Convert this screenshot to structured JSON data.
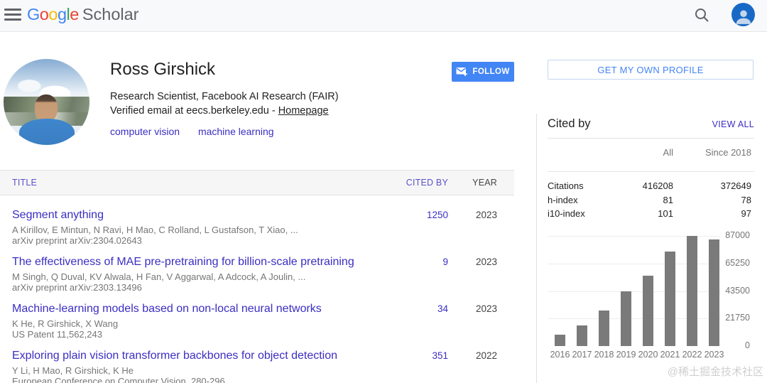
{
  "colors": {
    "brand_blue": "#4285F4",
    "brand_red": "#EA4335",
    "brand_yellow": "#FBBC05",
    "brand_green": "#34A853",
    "link": "#3A2EC2",
    "header_link": "#5A52C8",
    "follow_button": "#4285F4",
    "bar_gray": "#7A7A7A",
    "muted_text": "#757575",
    "avatar_blue": "#1869C6"
  },
  "header": {
    "logo": {
      "letters": [
        {
          "ch": "G",
          "color": "#4285F4"
        },
        {
          "ch": "o",
          "color": "#EA4335"
        },
        {
          "ch": "o",
          "color": "#FBBC05"
        },
        {
          "ch": "g",
          "color": "#4285F4"
        },
        {
          "ch": "l",
          "color": "#34A853"
        },
        {
          "ch": "e",
          "color": "#EA4335"
        }
      ],
      "suffix": "Scholar"
    }
  },
  "profile": {
    "name": "Ross Girshick",
    "affiliation": "Research Scientist, Facebook AI Research (FAIR)",
    "email_prefix": "Verified email at eecs.berkeley.edu - ",
    "homepage_label": "Homepage",
    "interests": [
      "computer vision",
      "machine learning"
    ],
    "follow_label": "FOLLOW",
    "get_profile_label": "GET MY OWN PROFILE"
  },
  "publications": {
    "columns": {
      "title": "TITLE",
      "cited_by": "CITED BY",
      "year": "YEAR"
    },
    "rows": [
      {
        "title": "Segment anything",
        "authors": "A Kirillov, E Mintun, N Ravi, H Mao, C Rolland, L Gustafson, T Xiao, ...",
        "venue": "arXiv preprint arXiv:2304.02643",
        "cited_by": "1250",
        "year": "2023"
      },
      {
        "title": "The effectiveness of MAE pre-pretraining for billion-scale pretraining",
        "authors": "M Singh, Q Duval, KV Alwala, H Fan, V Aggarwal, A Adcock, A Joulin, ...",
        "venue": "arXiv preprint arXiv:2303.13496",
        "cited_by": "9",
        "year": "2023"
      },
      {
        "title": "Machine-learning models based on non-local neural networks",
        "authors": "K He, R Girshick, X Wang",
        "venue": "US Patent 11,562,243",
        "cited_by": "34",
        "year": "2023"
      },
      {
        "title": "Exploring plain vision transformer backbones for object detection",
        "authors": "Y Li, H Mao, R Girshick, K He",
        "venue": "European Conference on Computer Vision, 280-296",
        "cited_by": "351",
        "year": "2022"
      }
    ]
  },
  "cited_by_panel": {
    "title": "Cited by",
    "view_all": "VIEW ALL",
    "col_all": "All",
    "col_since": "Since 2018",
    "metrics": [
      {
        "label": "Citations",
        "all": "416208",
        "since": "372649"
      },
      {
        "label": "h-index",
        "all": "81",
        "since": "78"
      },
      {
        "label": "i10-index",
        "all": "101",
        "since": "97"
      }
    ]
  },
  "chart_data": {
    "type": "bar",
    "title": "",
    "categories": [
      "2016",
      "2017",
      "2018",
      "2019",
      "2020",
      "2021",
      "2022",
      "2023"
    ],
    "values": [
      8800,
      16000,
      28000,
      43400,
      55600,
      74400,
      86800,
      84200
    ],
    "yticks": [
      87000,
      65250,
      43500,
      21750,
      0
    ],
    "ylim": [
      0,
      87000
    ],
    "xlabel": "",
    "ylabel": "",
    "bar_color": "#7A7A7A",
    "legend": "none",
    "grid": "horizontal-faint"
  },
  "watermark": "@稀土掘金技术社区"
}
